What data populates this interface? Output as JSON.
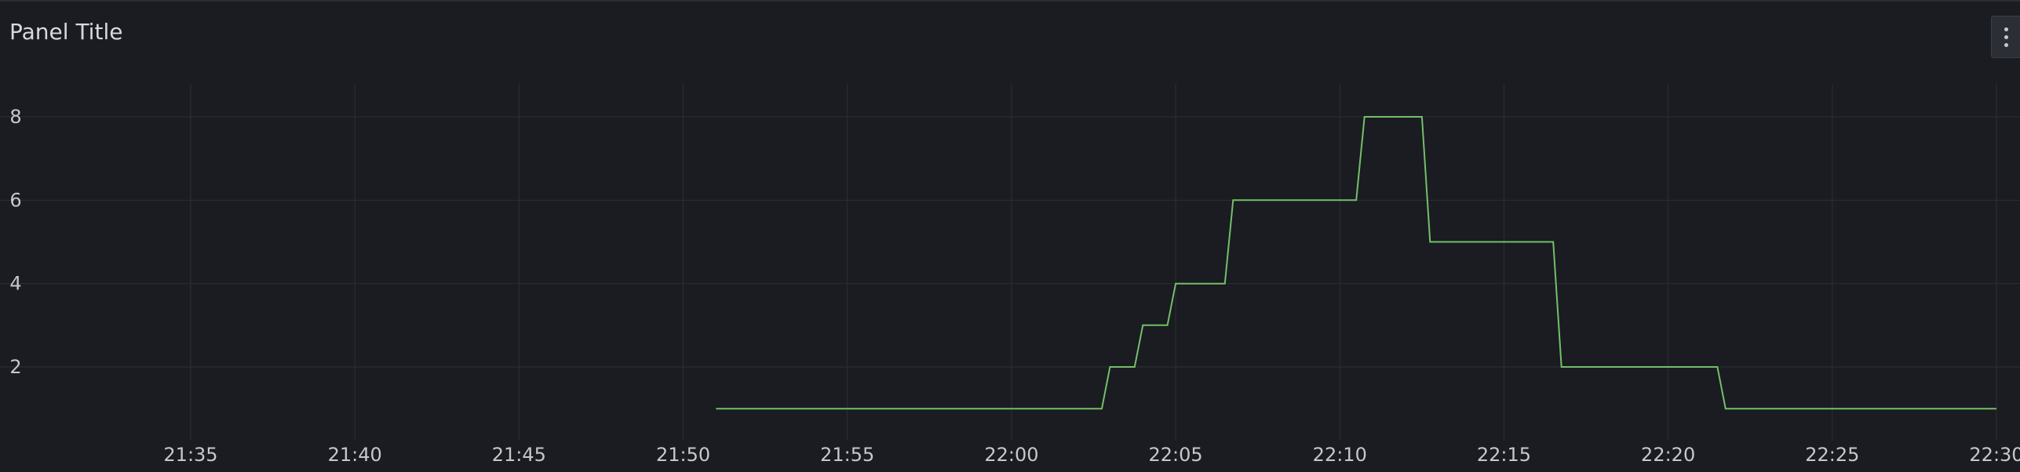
{
  "panel": {
    "title": "Panel Title",
    "menu_icon": "kebab-menu-icon"
  },
  "colors": {
    "background": "#1a1c21",
    "grid": "#2c2f35",
    "series_line": "#73bf69",
    "text": "#c7c8ca"
  },
  "chart_data": {
    "type": "line",
    "title": "Panel Title",
    "xlabel": "",
    "ylabel": "",
    "grid": true,
    "line_interpolation": "linear",
    "xlim": [
      "21:31",
      "22:30"
    ],
    "ylim": [
      0,
      8.8
    ],
    "x_ticks": [
      "21:35",
      "21:40",
      "21:45",
      "21:50",
      "21:55",
      "22:00",
      "22:05",
      "22:10",
      "22:15",
      "22:20",
      "22:25",
      "22:30"
    ],
    "y_ticks": [
      2,
      4,
      6,
      8
    ],
    "series": [
      {
        "x": [
          "21:51",
          "22:02:45",
          "22:03:00",
          "22:03:45",
          "22:04:00",
          "22:04:45",
          "22:05:00",
          "22:06:30",
          "22:06:45",
          "22:10:30",
          "22:10:45",
          "22:12:30",
          "22:12:45",
          "22:16:30",
          "22:16:45",
          "22:21:30",
          "22:21:45",
          "22:30"
        ],
        "values": [
          1,
          1,
          2,
          2,
          3,
          3,
          4,
          4,
          6,
          6,
          8,
          8,
          5,
          5,
          2,
          2,
          1,
          1
        ]
      }
    ]
  }
}
